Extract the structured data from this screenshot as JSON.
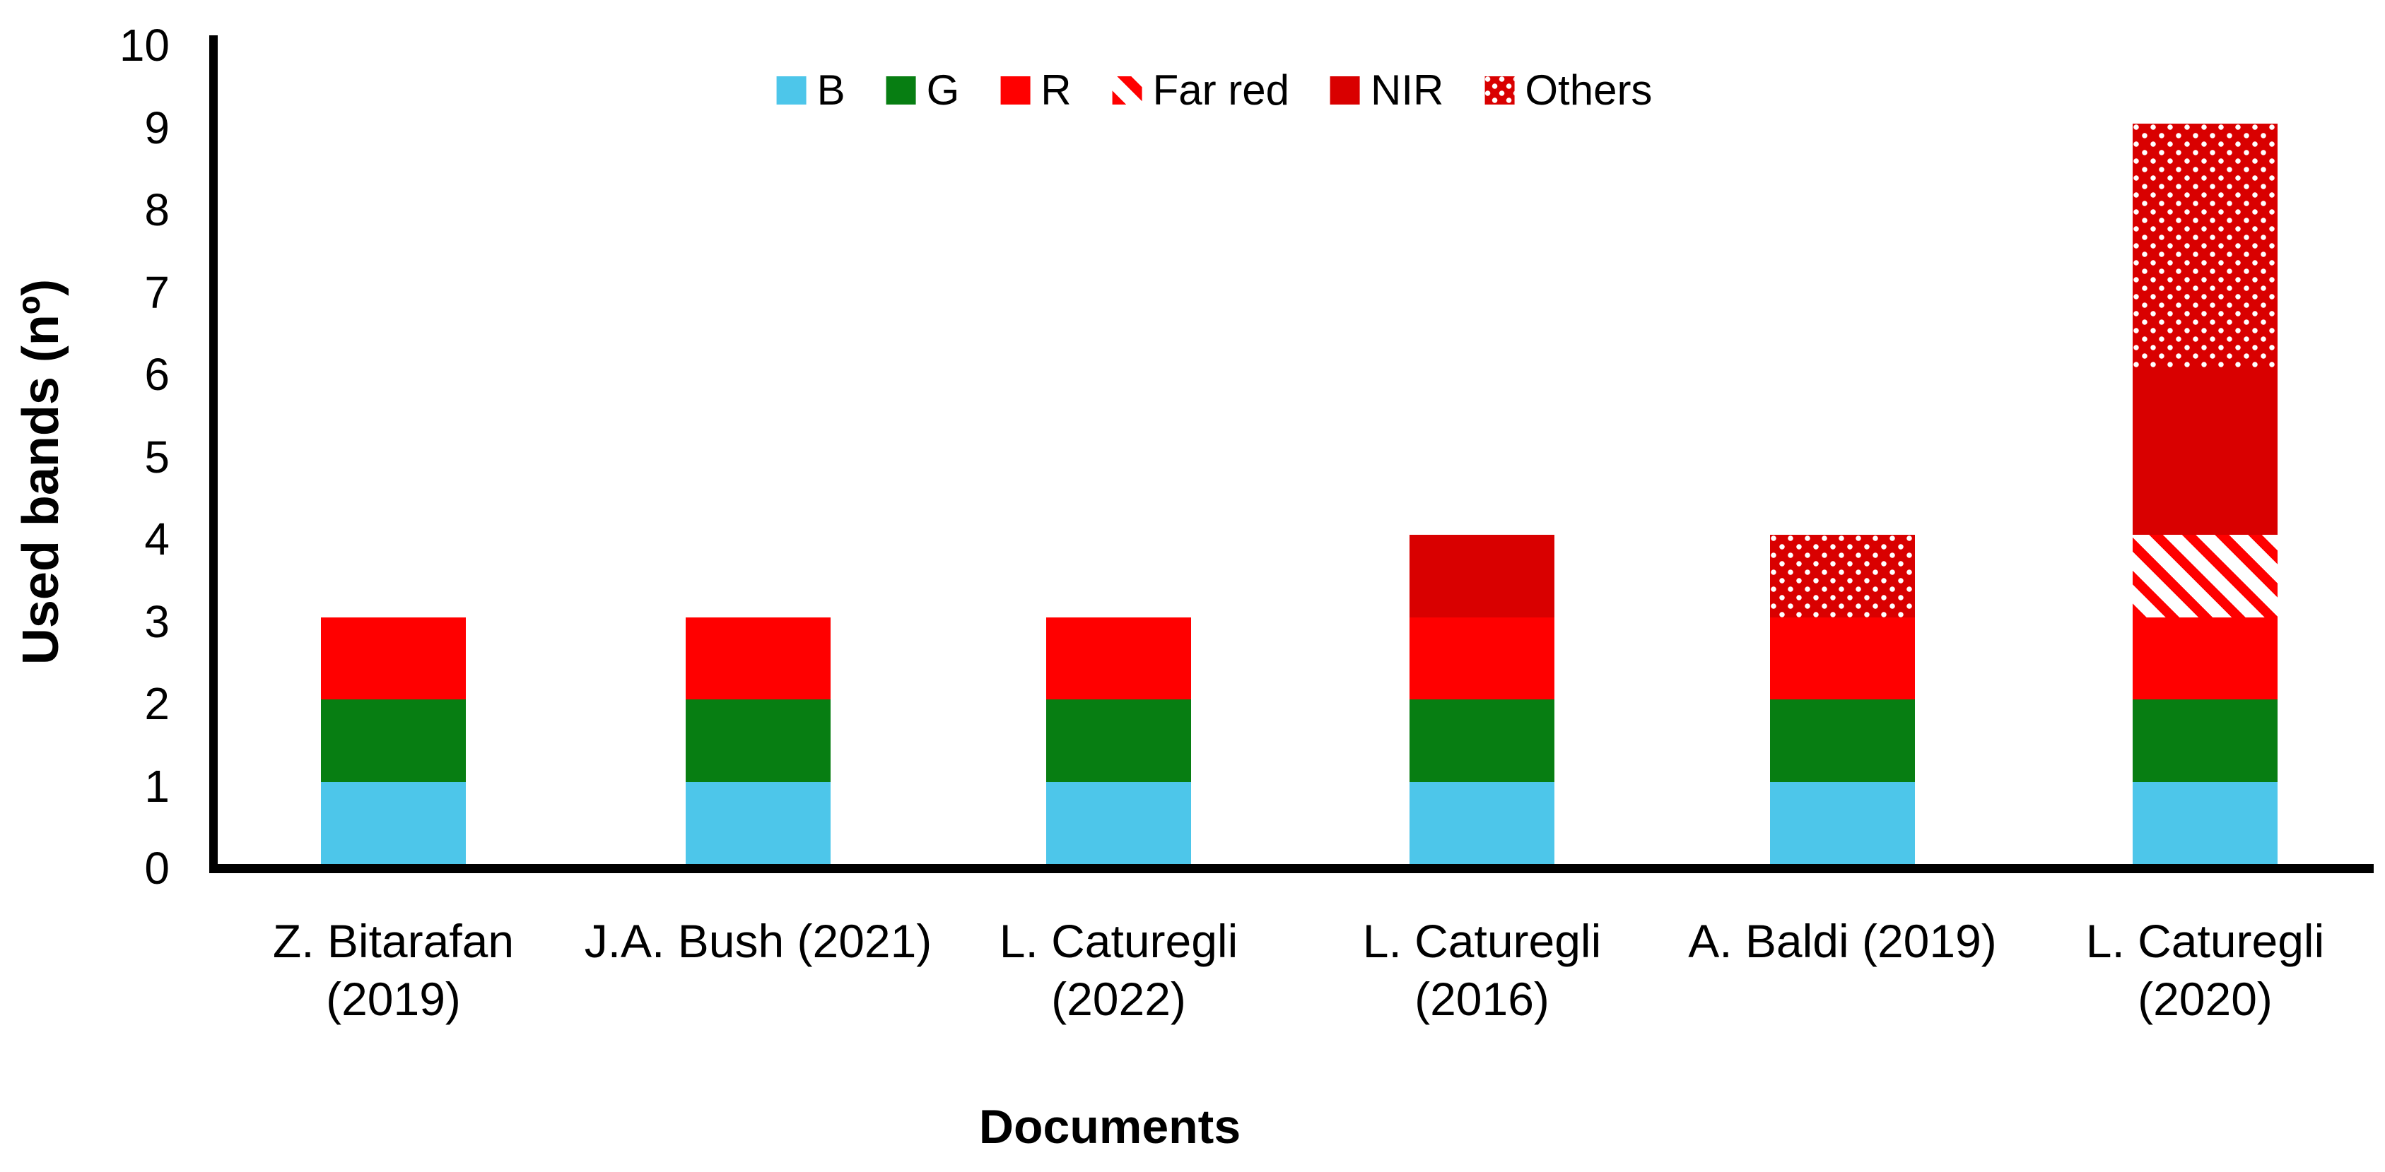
{
  "chart_data": {
    "type": "bar",
    "stacked": true,
    "orientation": "vertical",
    "title": "",
    "xlabel": "Documents",
    "ylabel": "Used bands (nº)",
    "ylim": [
      0,
      10
    ],
    "yticks": [
      0,
      1,
      2,
      3,
      4,
      5,
      6,
      7,
      8,
      9,
      10
    ],
    "grid": false,
    "legend_position": "top-center",
    "background_color": "#FFFFFF",
    "axis_color": "#000000",
    "categories": [
      "Z. Bitarafan (2019)",
      "J.A. Bush (2021)",
      "L. Caturegli (2022)",
      "L. Caturegli (2016)",
      "A. Baldi (2019)",
      "L. Caturegli (2020)"
    ],
    "category_label_lines": [
      [
        "Z. Bitarafan",
        "(2019)"
      ],
      [
        "J.A. Bush (2021)"
      ],
      [
        "L. Caturegli",
        "(2022)"
      ],
      [
        "L. Caturegli",
        "(2016)"
      ],
      [
        "A. Baldi (2019)"
      ],
      [
        "L. Caturegli",
        "(2020)"
      ]
    ],
    "series": [
      {
        "name": "B",
        "color": "#4DC6EA",
        "pattern": "solid",
        "values": [
          1,
          1,
          1,
          1,
          1,
          1
        ]
      },
      {
        "name": "G",
        "color": "#077E12",
        "pattern": "solid",
        "values": [
          1,
          1,
          1,
          1,
          1,
          1
        ]
      },
      {
        "name": "R",
        "color": "#FF0000",
        "pattern": "solid",
        "values": [
          1,
          1,
          1,
          1,
          1,
          1
        ]
      },
      {
        "name": "Far red",
        "color": "#FF0000",
        "pattern": "diagonal-stripes",
        "pattern_bg": "#FFFFFF",
        "values": [
          0,
          0,
          0,
          0,
          0,
          1
        ]
      },
      {
        "name": "NIR",
        "color": "#D90000",
        "pattern": "solid",
        "values": [
          0,
          0,
          0,
          1,
          0,
          2
        ]
      },
      {
        "name": "Others",
        "color": "#D90000",
        "pattern": "dots",
        "pattern_bg": "#FFFFFF",
        "values": [
          0,
          0,
          0,
          0,
          1,
          3
        ]
      }
    ],
    "totals": [
      3,
      3,
      3,
      4,
      4,
      9
    ]
  }
}
